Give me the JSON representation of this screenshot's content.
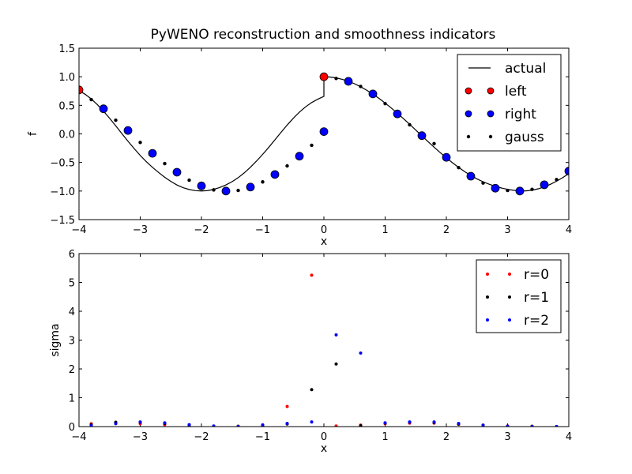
{
  "title": "PyWENO reconstruction and smoothness indicators",
  "chart_data": [
    {
      "type": "line",
      "xlabel": "x",
      "ylabel": "f",
      "xlim": [
        -4,
        4
      ],
      "ylim": [
        -1.5,
        1.5
      ],
      "xticks": [
        "−4",
        "−3",
        "−2",
        "−1",
        "0",
        "1",
        "2",
        "3",
        "4"
      ],
      "yticks": [
        "−1.5",
        "−1.0",
        "−0.5",
        "0.0",
        "0.5",
        "1.0",
        "1.5"
      ],
      "legend_position": "top-right",
      "series": [
        {
          "name": "actual",
          "style": "line",
          "color": "#000000",
          "x": [
            -4.0,
            -3.9,
            -3.8,
            -3.7,
            -3.6,
            -3.5,
            -3.4,
            -3.3,
            -3.2,
            -3.1,
            -3.0,
            -2.9,
            -2.8,
            -2.7,
            -2.6,
            -2.5,
            -2.4,
            -2.3,
            -2.2,
            -2.1,
            -2.0,
            -1.9,
            -1.8,
            -1.7,
            -1.6,
            -1.5,
            -1.4,
            -1.3,
            -1.2,
            -1.1,
            -1.0,
            -0.9,
            -0.8,
            -0.7,
            -0.6,
            -0.5,
            -0.4,
            -0.3,
            -0.2,
            -0.1,
            0.0,
            0.0,
            0.1,
            0.2,
            0.3,
            0.4,
            0.5,
            0.6,
            0.7,
            0.8,
            0.9,
            1.0,
            1.1,
            1.2,
            1.3,
            1.4,
            1.5,
            1.6,
            1.7,
            1.8,
            1.9,
            2.0,
            2.1,
            2.2,
            2.3,
            2.4,
            2.5,
            2.6,
            2.7,
            2.8,
            2.9,
            3.0,
            3.1,
            3.2,
            3.3,
            3.4,
            3.5,
            3.6,
            3.7,
            3.8,
            3.9,
            4.0
          ],
          "y": [
            0.757,
            0.694,
            0.612,
            0.512,
            0.397,
            0.273,
            0.141,
            0.006,
            -0.128,
            -0.256,
            -0.377,
            -0.487,
            -0.585,
            -0.675,
            -0.758,
            -0.832,
            -0.894,
            -0.941,
            -0.973,
            -0.993,
            -0.999,
            -0.992,
            -0.971,
            -0.938,
            -0.893,
            -0.836,
            -0.766,
            -0.681,
            -0.583,
            -0.475,
            -0.358,
            -0.234,
            -0.104,
            0.027,
            0.155,
            0.274,
            0.381,
            0.473,
            0.549,
            0.607,
            0.657,
            1.0,
            0.995,
            0.98,
            0.955,
            0.921,
            0.878,
            0.825,
            0.764,
            0.697,
            0.622,
            0.54,
            0.454,
            0.362,
            0.267,
            0.168,
            0.068,
            -0.033,
            -0.134,
            -0.233,
            -0.328,
            -0.419,
            -0.505,
            -0.586,
            -0.66,
            -0.727,
            -0.787,
            -0.838,
            -0.881,
            -0.916,
            -0.947,
            -0.97,
            -0.987,
            -0.997,
            -0.997,
            -0.985,
            -0.961,
            -0.927,
            -0.882,
            -0.828,
            -0.765,
            -0.695
          ]
        },
        {
          "name": "left",
          "style": "marker",
          "color": "#ff0000",
          "x": [
            -4.0,
            0.0
          ],
          "y": [
            0.77,
            1.0
          ]
        },
        {
          "name": "right",
          "style": "marker",
          "color": "#0000ff",
          "x": [
            -3.6,
            -3.2,
            -2.8,
            -2.4,
            -2.0,
            -1.6,
            -1.2,
            -0.8,
            -0.4,
            0.0,
            0.4,
            0.8,
            1.2,
            1.6,
            2.0,
            2.4,
            2.8,
            3.2,
            3.6,
            4.0
          ],
          "y": [
            0.44,
            0.06,
            -0.34,
            -0.67,
            -0.91,
            -1.0,
            -0.93,
            -0.71,
            -0.39,
            0.04,
            0.92,
            0.7,
            0.35,
            -0.03,
            -0.41,
            -0.74,
            -0.95,
            -1.0,
            -0.89,
            -0.65
          ]
        },
        {
          "name": "gauss",
          "style": "dot",
          "color": "#000000",
          "x": [
            -3.8,
            -3.4,
            -3.0,
            -2.6,
            -2.2,
            -1.8,
            -1.4,
            -1.0,
            -0.6,
            -0.2,
            0.2,
            0.6,
            1.0,
            1.4,
            1.8,
            2.2,
            2.6,
            3.0,
            3.4,
            3.8
          ],
          "y": [
            0.6,
            0.24,
            -0.15,
            -0.52,
            -0.81,
            -0.98,
            -0.99,
            -0.84,
            -0.56,
            -0.2,
            0.97,
            0.83,
            0.53,
            0.16,
            -0.17,
            -0.59,
            -0.86,
            -0.99,
            -0.97,
            -0.8
          ]
        }
      ]
    },
    {
      "type": "scatter",
      "xlabel": "x",
      "ylabel": "sigma",
      "xlim": [
        -4,
        4
      ],
      "ylim": [
        0,
        6
      ],
      "xticks": [
        "−4",
        "−3",
        "−2",
        "−1",
        "0",
        "1",
        "2",
        "3",
        "4"
      ],
      "yticks": [
        "0",
        "1",
        "2",
        "3",
        "4",
        "5",
        "6"
      ],
      "legend_position": "top-right",
      "series": [
        {
          "name": "r=0",
          "color": "#ff0000",
          "x": [
            -3.8,
            -3.4,
            -3.0,
            -2.6,
            -2.2,
            -1.8,
            -1.4,
            -1.0,
            -0.6,
            -0.2,
            0.2,
            0.6,
            1.0,
            1.4,
            1.8,
            2.2,
            2.6,
            3.0,
            3.4,
            3.8
          ],
          "y": [
            0.1,
            0.13,
            0.1,
            0.07,
            0.03,
            0.01,
            0.01,
            0.03,
            0.7,
            5.25,
            0.02,
            0.05,
            0.1,
            0.12,
            0.12,
            0.08,
            0.05,
            0.02,
            0.01,
            0.0
          ]
        },
        {
          "name": "r=1",
          "color": "#000000",
          "x": [
            -3.8,
            -3.4,
            -3.0,
            -2.6,
            -2.2,
            -1.8,
            -1.4,
            -1.0,
            -0.6,
            -0.2,
            0.2,
            0.6,
            1.0,
            1.4,
            1.8,
            2.2,
            2.6,
            3.0,
            3.4,
            3.8
          ],
          "y": [
            0.06,
            0.15,
            0.15,
            0.11,
            0.05,
            0.01,
            0.01,
            0.04,
            0.09,
            1.28,
            2.17,
            0.03,
            0.12,
            0.15,
            0.14,
            0.09,
            0.04,
            0.01,
            0.01,
            0.0
          ]
        },
        {
          "name": "r=2",
          "color": "#0000ff",
          "x": [
            -3.8,
            -3.4,
            -3.0,
            -2.6,
            -2.2,
            -1.8,
            -1.4,
            -1.0,
            -0.6,
            -0.2,
            0.2,
            0.6,
            1.0,
            1.4,
            1.8,
            2.2,
            2.6,
            3.0,
            3.4,
            3.8
          ],
          "y": [
            0.03,
            0.1,
            0.16,
            0.13,
            0.07,
            0.02,
            0.0,
            0.06,
            0.11,
            0.16,
            3.18,
            2.55,
            0.13,
            0.16,
            0.16,
            0.11,
            0.05,
            0.01,
            0.0,
            0.0
          ]
        }
      ]
    }
  ]
}
